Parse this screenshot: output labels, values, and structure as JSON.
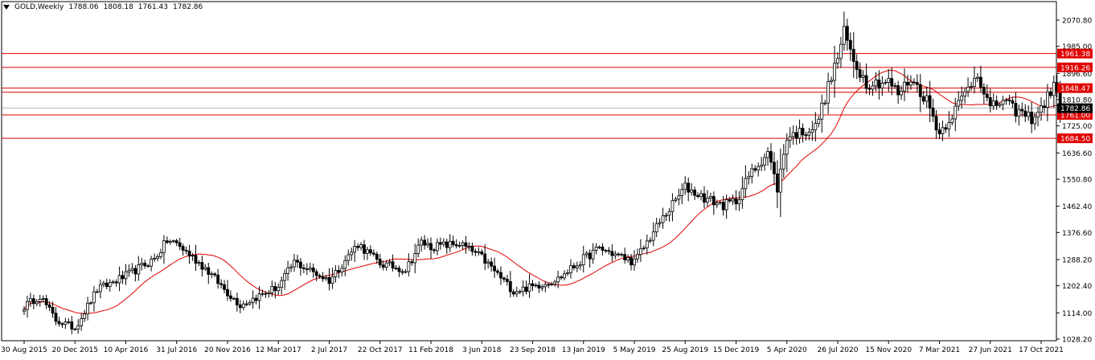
{
  "header": {
    "symbol": "GOLD,Weekly",
    "open": "1788.06",
    "high": "1808.18",
    "low": "1761.43",
    "close": "1782.86"
  },
  "colors": {
    "candle": "#000000",
    "ma": "#e00000",
    "level": "#e00000",
    "level_label_bg": "#e00000",
    "current_price_bg": "#000000",
    "current_price_line": "#a0a0a0"
  },
  "chart_data": {
    "type": "candlestick",
    "y_ticks": [
      "2070.80",
      "1985.00",
      "1896.60",
      "1810.80",
      "1725.00",
      "1636.60",
      "1550.80",
      "1462.40",
      "1376.60",
      "1288.20",
      "1202.40",
      "1114.00",
      "1028.20"
    ],
    "ylim": [
      1028.2,
      2070.8
    ],
    "x_ticks": [
      "30 Aug 2015",
      "20 Dec 2015",
      "10 Apr 2016",
      "31 Jul 2016",
      "20 Nov 2016",
      "12 Mar 2017",
      "2 Jul 2017",
      "22 Oct 2017",
      "11 Feb 2018",
      "3 Jun 2018",
      "23 Sep 2018",
      "13 Jan 2019",
      "5 May 2019",
      "25 Aug 2019",
      "15 Dec 2019",
      "5 Apr 2020",
      "26 Jul 2020",
      "15 Nov 2020",
      "7 Mar 2021",
      "27 Jun 2021",
      "17 Oct 2021"
    ],
    "price_anchors": [
      [
        "30 Aug 2015",
        1135
      ],
      [
        "4 Oct 2015",
        1170
      ],
      [
        "8 Nov 2015",
        1090
      ],
      [
        "20 Dec 2015",
        1065
      ],
      [
        "7 Feb 2016",
        1190
      ],
      [
        "10 Apr 2016",
        1235
      ],
      [
        "12 Jun 2016",
        1290
      ],
      [
        "10 Jul 2016",
        1350
      ],
      [
        "31 Jul 2016",
        1340
      ],
      [
        "2 Oct 2016",
        1260
      ],
      [
        "20 Nov 2016",
        1180
      ],
      [
        "18 Dec 2016",
        1140
      ],
      [
        "12 Mar 2017",
        1200
      ],
      [
        "16 Apr 2017",
        1280
      ],
      [
        "2 Jul 2017",
        1220
      ],
      [
        "3 Sep 2017",
        1340
      ],
      [
        "22 Oct 2017",
        1275
      ],
      [
        "17 Dec 2017",
        1255
      ],
      [
        "21 Jan 2018",
        1345
      ],
      [
        "11 Feb 2018",
        1330
      ],
      [
        "15 Apr 2018",
        1340
      ],
      [
        "3 Jun 2018",
        1295
      ],
      [
        "12 Aug 2018",
        1185
      ],
      [
        "23 Sep 2018",
        1200
      ],
      [
        "18 Nov 2018",
        1225
      ],
      [
        "13 Jan 2019",
        1290
      ],
      [
        "17 Feb 2019",
        1325
      ],
      [
        "5 May 2019",
        1280
      ],
      [
        "30 Jun 2019",
        1410
      ],
      [
        "25 Aug 2019",
        1525
      ],
      [
        "6 Oct 2019",
        1490
      ],
      [
        "17 Nov 2019",
        1465
      ],
      [
        "15 Dec 2019",
        1480
      ],
      [
        "12 Jan 2020",
        1560
      ],
      [
        "23 Feb 2020",
        1640
      ],
      [
        "15 Mar 2020",
        1520
      ],
      [
        "5 Apr 2020",
        1690
      ],
      [
        "7 Jun 2020",
        1720
      ],
      [
        "26 Jul 2020",
        1950
      ],
      [
        "9 Aug 2020",
        2030
      ],
      [
        "30 Aug 2020",
        1940
      ],
      [
        "27 Sep 2020",
        1865
      ],
      [
        "15 Nov 2020",
        1870
      ],
      [
        "6 Dec 2020",
        1830
      ],
      [
        "3 Jan 2021",
        1880
      ],
      [
        "7 Feb 2021",
        1810
      ],
      [
        "7 Mar 2021",
        1700
      ],
      [
        "11 Apr 2021",
        1780
      ],
      [
        "30 May 2021",
        1900
      ],
      [
        "27 Jun 2021",
        1780
      ],
      [
        "25 Jul 2021",
        1810
      ],
      [
        "15 Aug 2021",
        1780
      ],
      [
        "26 Sep 2021",
        1750
      ],
      [
        "17 Oct 2021",
        1780
      ],
      [
        "14 Nov 2021",
        1860
      ],
      [
        "28 Nov 2021",
        1782.86
      ]
    ],
    "levels": [
      {
        "value": 1961.38,
        "label": "1961.38"
      },
      {
        "value": 1916.26,
        "label": "1916.26"
      },
      {
        "value": 1848.47,
        "label": "1848.47"
      },
      {
        "value": 1835.0,
        "label": ""
      },
      {
        "value": 1761.0,
        "label": "1761.00"
      },
      {
        "value": 1684.5,
        "label": "1684.50"
      }
    ],
    "current_price": {
      "value": 1782.86,
      "label": "1782.86"
    },
    "moving_average": true,
    "grid": false
  }
}
